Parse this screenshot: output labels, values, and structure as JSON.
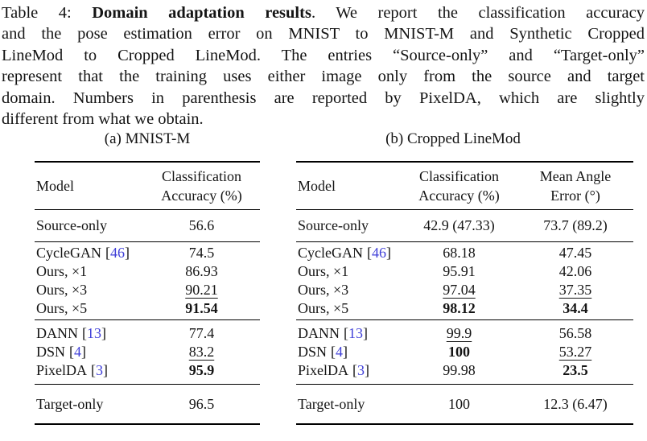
{
  "colors": {
    "citation": "#4040d8",
    "text": "#141414"
  },
  "punct": {
    "open_bracket": "[",
    "close_bracket": "]"
  },
  "caption": {
    "line1_prefix": "Table 4: ",
    "line1_bold": "Domain adaptation results",
    "line1_rest": ". We report the classification accuracy",
    "line2": "and the pose estimation error on MNIST to MNIST-M and Synthetic Cropped",
    "line3": "LineMod to Cropped LineMod. The entries “Source-only” and “Target-only”",
    "line4": "represent that the training uses either image only from the source and target",
    "line5": "domain. Numbers in parenthesis are reported by PixelDA, which are slightly",
    "line6": "different from what we obtain."
  },
  "table_a": {
    "subcaption": "(a) MNIST-M",
    "header": {
      "model": "Model",
      "col2_line1": "Classification",
      "col2_line2": "Accuracy (%)"
    },
    "rows": {
      "source_only": {
        "model": "Source-only",
        "acc": "56.6"
      },
      "cyclegan": {
        "model": "CycleGAN",
        "cite": "46",
        "acc": "74.5"
      },
      "ours_x1": {
        "model": "Ours, ×1",
        "acc": "86.93"
      },
      "ours_x3": {
        "model": "Ours, ×3",
        "acc": "90.21"
      },
      "ours_x5": {
        "model": "Ours, ×5",
        "acc": "91.54"
      },
      "dann": {
        "model": "DANN",
        "cite": "13",
        "acc": "77.4"
      },
      "dsn": {
        "model": "DSN",
        "cite": "4",
        "acc": "83.2"
      },
      "pixelda": {
        "model": "PixelDA",
        "cite": "3",
        "acc": "95.9"
      },
      "target_only": {
        "model": "Target-only",
        "acc": "96.5"
      }
    }
  },
  "table_b": {
    "subcaption": "(b) Cropped LineMod",
    "header": {
      "model": "Model",
      "col2_line1": "Classification",
      "col2_line2": "Accuracy (%)",
      "col3_line1": "Mean Angle",
      "col3_line2": "Error (°)"
    },
    "rows": {
      "source_only": {
        "model": "Source-only",
        "acc": "42.9 (47.33)",
        "err": "73.7 (89.2)"
      },
      "cyclegan": {
        "model": "CycleGAN",
        "cite": "46",
        "acc": "68.18",
        "err": "47.45"
      },
      "ours_x1": {
        "model": "Ours, ×1",
        "acc": "95.91",
        "err": "42.06"
      },
      "ours_x3": {
        "model": "Ours, ×3",
        "acc": "97.04",
        "err": "37.35"
      },
      "ours_x5": {
        "model": "Ours, ×5",
        "acc": "98.12",
        "err": "34.4"
      },
      "dann": {
        "model": "DANN",
        "cite": "13",
        "acc": "99.9",
        "err": "56.58"
      },
      "dsn": {
        "model": "DSN",
        "cite": "4",
        "acc": "100",
        "err": "53.27"
      },
      "pixelda": {
        "model": "PixelDA",
        "cite": "3",
        "acc": "99.98",
        "err": "23.5"
      },
      "target_only": {
        "model": "Target-only",
        "acc": "100",
        "err": "12.3 (6.47)"
      }
    }
  }
}
